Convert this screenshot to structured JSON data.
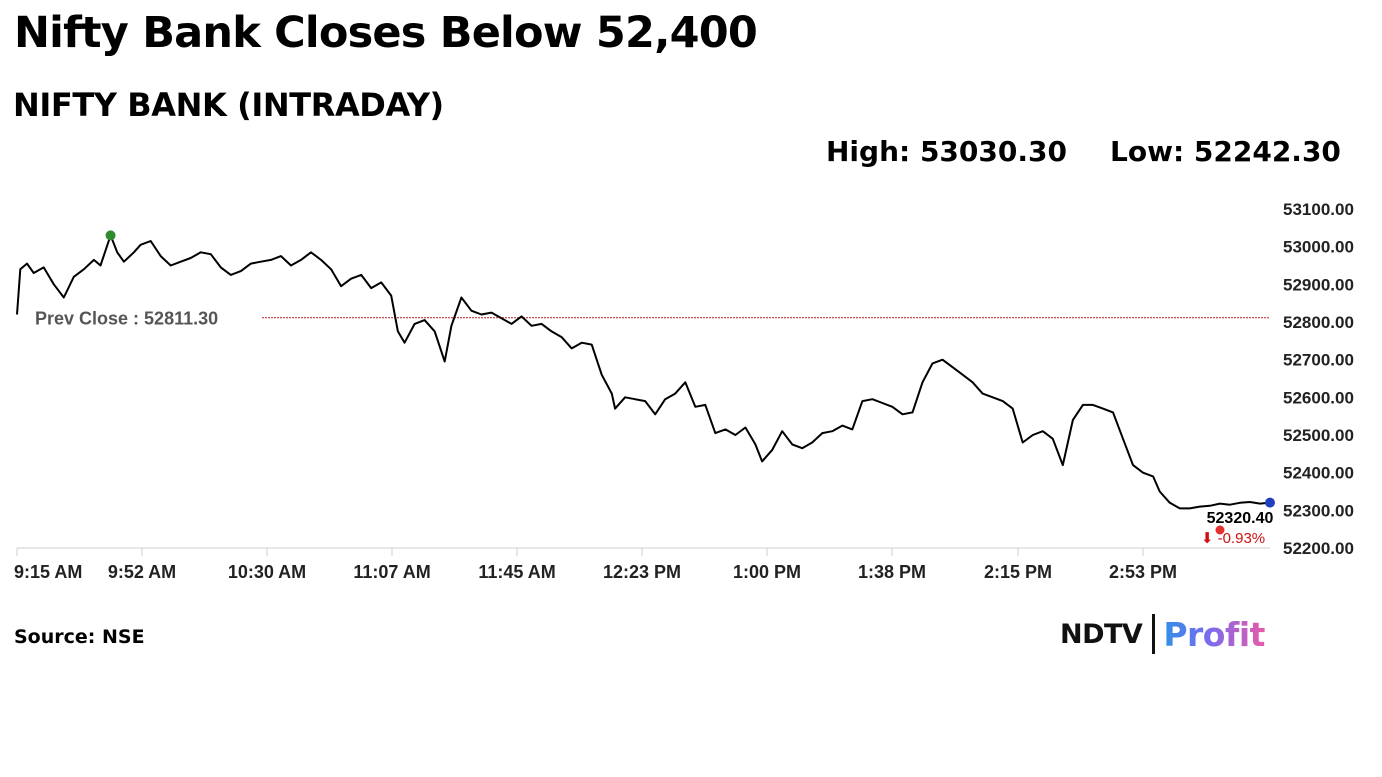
{
  "headline": "Nifty Bank Closes Below 52,400",
  "chart_data": {
    "type": "line",
    "title": "NIFTY BANK (INTRADAY)",
    "high_label": "High: 53030.30",
    "low_label": "Low: 52242.30",
    "ylim": [
      52200,
      53100
    ],
    "y_ticks": [
      "53100.00",
      "53000.00",
      "52900.00",
      "52800.00",
      "52700.00",
      "52600.00",
      "52500.00",
      "52400.00",
      "52300.00",
      "52200.00"
    ],
    "y_tick_values": [
      53100,
      53000,
      52900,
      52800,
      52700,
      52600,
      52500,
      52400,
      52300,
      52200
    ],
    "x_ticks": [
      "9:15 AM",
      "9:52 AM",
      "10:30 AM",
      "11:07 AM",
      "11:45 AM",
      "12:23 PM",
      "1:00 PM",
      "1:38 PM",
      "2:15 PM",
      "2:53 PM"
    ],
    "prev_close": 52811.3,
    "prev_close_label": "Prev Close : 52811.30",
    "last_value_label": "52320.40",
    "change_label": "⬇ -0.93%",
    "grid": false,
    "series": [
      {
        "x": [
          "9:15",
          "9:16",
          "9:18",
          "9:20",
          "9:23",
          "9:26",
          "9:29",
          "9:32",
          "9:35",
          "9:38",
          "9:40",
          "9:43",
          "9:45",
          "9:47",
          "9:50",
          "9:52",
          "9:55",
          "9:58",
          "10:01",
          "10:04",
          "10:07",
          "10:10",
          "10:13",
          "10:16",
          "10:19",
          "10:22",
          "10:25",
          "10:28",
          "10:31",
          "10:34",
          "10:37",
          "10:40",
          "10:43",
          "10:46",
          "10:49",
          "10:52",
          "10:55",
          "10:58",
          "11:01",
          "11:04",
          "11:07",
          "11:09",
          "11:11",
          "11:14",
          "11:17",
          "11:20",
          "11:23",
          "11:25",
          "11:28",
          "11:31",
          "11:34",
          "11:37",
          "11:40",
          "11:43",
          "11:46",
          "11:49",
          "11:52",
          "11:55",
          "11:58",
          "12:01",
          "12:04",
          "12:07",
          "12:10",
          "12:13",
          "12:14",
          "12:17",
          "12:20",
          "12:23",
          "12:26",
          "12:29",
          "12:32",
          "12:35",
          "12:38",
          "12:41",
          "12:44",
          "12:47",
          "12:50",
          "12:53",
          "12:56",
          "12:58",
          "13:01",
          "13:04",
          "13:07",
          "13:10",
          "13:13",
          "13:16",
          "13:19",
          "13:22",
          "13:25",
          "13:28",
          "13:31",
          "13:34",
          "13:37",
          "13:40",
          "13:43",
          "13:46",
          "13:49",
          "13:52",
          "13:55",
          "13:58",
          "14:01",
          "14:04",
          "14:07",
          "14:10",
          "14:13",
          "14:16",
          "14:19",
          "14:22",
          "14:25",
          "14:28",
          "14:31",
          "14:34",
          "14:37",
          "14:40",
          "14:43",
          "14:46",
          "14:49",
          "14:52",
          "14:55",
          "14:57",
          "15:00",
          "15:03",
          "15:06",
          "15:09",
          "15:12",
          "15:15",
          "15:18",
          "15:21",
          "15:24",
          "15:27",
          "15:30"
        ],
        "values": [
          52820,
          52940,
          52955,
          52930,
          52945,
          52900,
          52865,
          52920,
          52940,
          52965,
          52950,
          53030,
          52985,
          52960,
          52985,
          53005,
          53015,
          52975,
          52950,
          52960,
          52970,
          52985,
          52980,
          52945,
          52925,
          52935,
          52955,
          52960,
          52965,
          52975,
          52950,
          52965,
          52985,
          52965,
          52940,
          52895,
          52915,
          52925,
          52890,
          52905,
          52870,
          52775,
          52745,
          52795,
          52805,
          52775,
          52695,
          52790,
          52865,
          52830,
          52820,
          52825,
          52810,
          52795,
          52815,
          52790,
          52795,
          52775,
          52760,
          52730,
          52745,
          52740,
          52660,
          52610,
          52570,
          52600,
          52595,
          52590,
          52555,
          52595,
          52610,
          52640,
          52575,
          52580,
          52505,
          52515,
          52500,
          52520,
          52475,
          52430,
          52460,
          52510,
          52475,
          52465,
          52480,
          52505,
          52510,
          52525,
          52515,
          52590,
          52595,
          52585,
          52575,
          52555,
          52560,
          52640,
          52690,
          52700,
          52680,
          52660,
          52640,
          52610,
          52600,
          52590,
          52570,
          52480,
          52500,
          52510,
          52490,
          52420,
          52540,
          52580,
          52580,
          52570,
          52560,
          52490,
          52420,
          52400,
          52390,
          52350,
          52320,
          52305,
          52305,
          52310,
          52312,
          52318,
          52315,
          52320,
          52322,
          52318,
          52320.4
        ]
      }
    ]
  },
  "source": "Source: NSE",
  "logo": {
    "left": "NDTV",
    "right": "Profit"
  },
  "colors": {
    "line": "#000000",
    "prev_close": "#b22222",
    "high_marker": "#2e8b2e",
    "low_marker": "#e53030",
    "last_marker": "#1f3fbf",
    "change": "#d01010",
    "axis": "#cfcfcf"
  }
}
